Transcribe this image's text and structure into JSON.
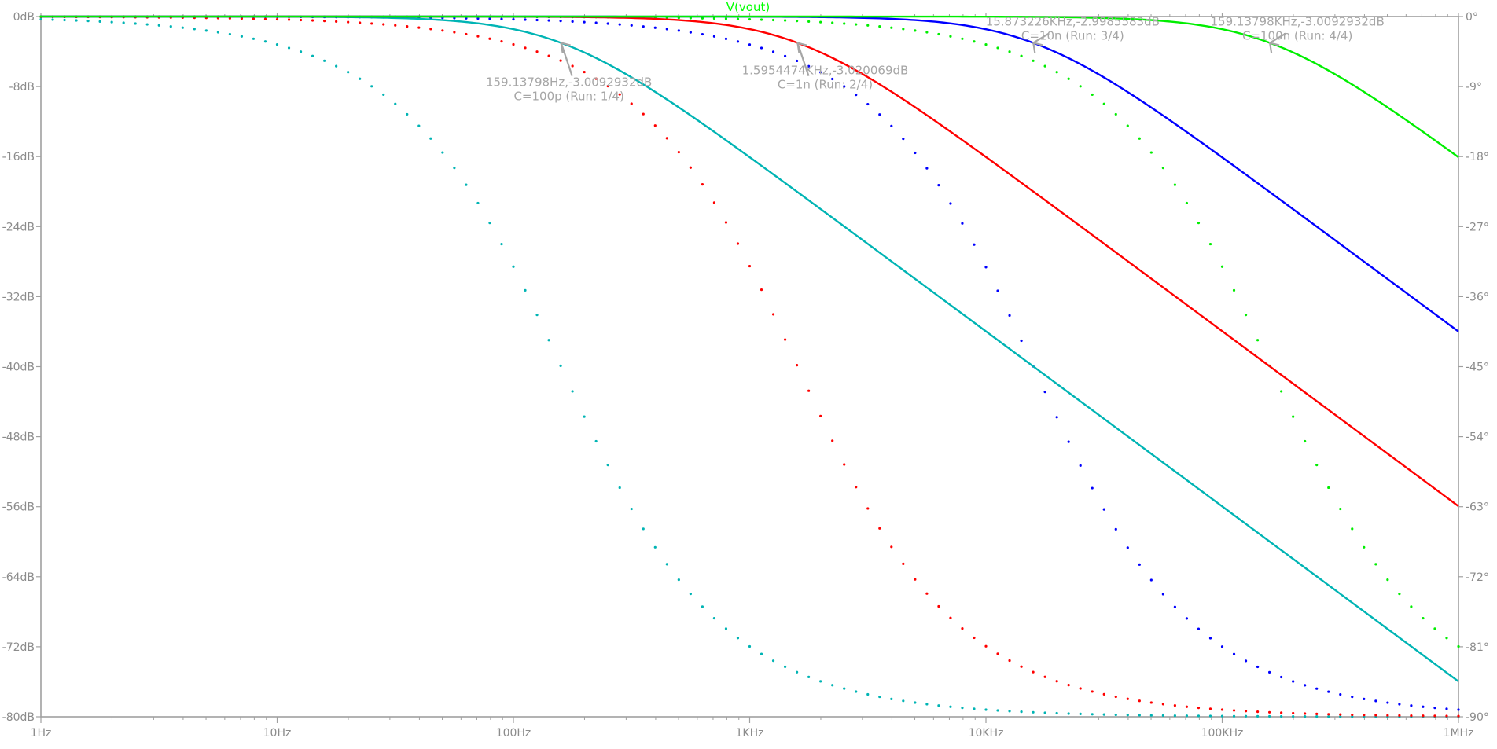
{
  "chart_data": {
    "type": "line",
    "title": "V(vout)",
    "title_color": "#00ff00",
    "x_scale": "log",
    "xlim_hz": [
      1,
      1000000
    ],
    "x_ticks": [
      {
        "value": 1,
        "label": "1Hz"
      },
      {
        "value": 10,
        "label": "10Hz"
      },
      {
        "value": 100,
        "label": "100Hz"
      },
      {
        "value": 1000,
        "label": "1KHz"
      },
      {
        "value": 10000,
        "label": "10KHz"
      },
      {
        "value": 100000,
        "label": "100KHz"
      },
      {
        "value": 1000000,
        "label": "1MHz"
      }
    ],
    "y_left": {
      "unit": "dB",
      "ylim": [
        -80,
        0
      ],
      "ticks": [
        {
          "value": 0,
          "label": "0dB"
        },
        {
          "value": -8,
          "label": "-8dB"
        },
        {
          "value": -16,
          "label": "-16dB"
        },
        {
          "value": -24,
          "label": "-24dB"
        },
        {
          "value": -32,
          "label": "-32dB"
        },
        {
          "value": -40,
          "label": "-40dB"
        },
        {
          "value": -48,
          "label": "-48dB"
        },
        {
          "value": -56,
          "label": "-56dB"
        },
        {
          "value": -64,
          "label": "-64dB"
        },
        {
          "value": -72,
          "label": "-72dB"
        },
        {
          "value": -80,
          "label": "-80dB"
        }
      ]
    },
    "y_right": {
      "unit": "degrees",
      "ylim": [
        -90,
        0
      ],
      "ticks": [
        {
          "value": 0,
          "label": "0°"
        },
        {
          "value": -9,
          "label": "-9°"
        },
        {
          "value": -18,
          "label": "-18°"
        },
        {
          "value": -27,
          "label": "-27°"
        },
        {
          "value": -36,
          "label": "-36°"
        },
        {
          "value": -45,
          "label": "-45°"
        },
        {
          "value": -54,
          "label": "-54°"
        },
        {
          "value": -63,
          "label": "-63°"
        },
        {
          "value": -72,
          "label": "-72°"
        },
        {
          "value": -81,
          "label": "-81°"
        },
        {
          "value": -90,
          "label": "-90°"
        }
      ]
    },
    "grid": false,
    "series": [
      {
        "cutoff_hz": 159.138,
        "color": "#00b4b4",
        "magnitude_db_at_1mhz": -75.9,
        "phase_deg_at_1mhz": -90
      },
      {
        "cutoff_hz": 1595.45,
        "color": "#ff0000",
        "magnitude_db_at_1mhz": -56,
        "phase_deg_at_1mhz": -89.9
      },
      {
        "cutoff_hz": 15873.2,
        "color": "#0000ff",
        "magnitude_db_at_1mhz": -36,
        "phase_deg_at_1mhz": -89.1
      },
      {
        "cutoff_hz": 159138,
        "color": "#00ee00",
        "magnitude_db_at_1mhz": -16.1,
        "phase_deg_at_1mhz": -81
      }
    ],
    "annotations": [
      {
        "line1": "159.13798Hz,-3.0092932dB",
        "line2": "C=100p  (Run: 1/4)",
        "freq_hz": 159.138,
        "db": -3.009
      },
      {
        "line1": "1.5954474KHz,-3.020069dB",
        "line2": "C=1n  (Run: 2/4)",
        "freq_hz": 1595.45,
        "db": -3.02
      },
      {
        "line1": "15.873226KHz,-2.9985583dB",
        "line2": "C=10n  (Run: 3/4)",
        "freq_hz": 15873.2,
        "db": -2.999
      },
      {
        "line1": "159.13798KHz,-3.0092932dB",
        "line2": "C=100n  (Run: 4/4)",
        "freq_hz": 159138,
        "db": -3.009
      }
    ]
  }
}
